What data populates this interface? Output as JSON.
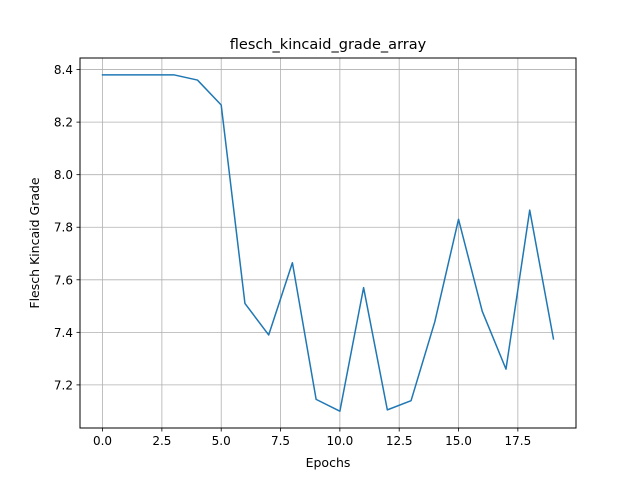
{
  "chart_data": {
    "type": "line",
    "title": "flesch_kincaid_grade_array",
    "xlabel": "Epochs",
    "ylabel": "Flesch Kincaid Grade",
    "xlim": [
      -0.95,
      19.95
    ],
    "ylim": [
      7.036,
      8.444
    ],
    "grid": true,
    "xticks": [
      0.0,
      2.5,
      5.0,
      7.5,
      10.0,
      12.5,
      15.0,
      17.5
    ],
    "xtick_labels": [
      "0.0",
      "2.5",
      "5.0",
      "7.5",
      "10.0",
      "12.5",
      "15.0",
      "17.5"
    ],
    "yticks": [
      7.2,
      7.4,
      7.6,
      7.8,
      8.0,
      8.2,
      8.4
    ],
    "ytick_labels": [
      "7.2",
      "7.4",
      "7.6",
      "7.8",
      "8.0",
      "8.2",
      "8.4"
    ],
    "series": [
      {
        "color": "#1f77b4",
        "x": [
          0,
          1,
          2,
          3,
          4,
          5,
          6,
          7,
          8,
          9,
          10,
          11,
          12,
          13,
          14,
          15,
          16,
          17,
          18,
          19
        ],
        "y": [
          8.38,
          8.38,
          8.38,
          8.38,
          8.36,
          8.265,
          7.51,
          7.39,
          7.665,
          7.145,
          7.1,
          7.57,
          7.105,
          7.14,
          7.44,
          7.83,
          7.48,
          7.26,
          7.865,
          7.375
        ]
      }
    ]
  }
}
